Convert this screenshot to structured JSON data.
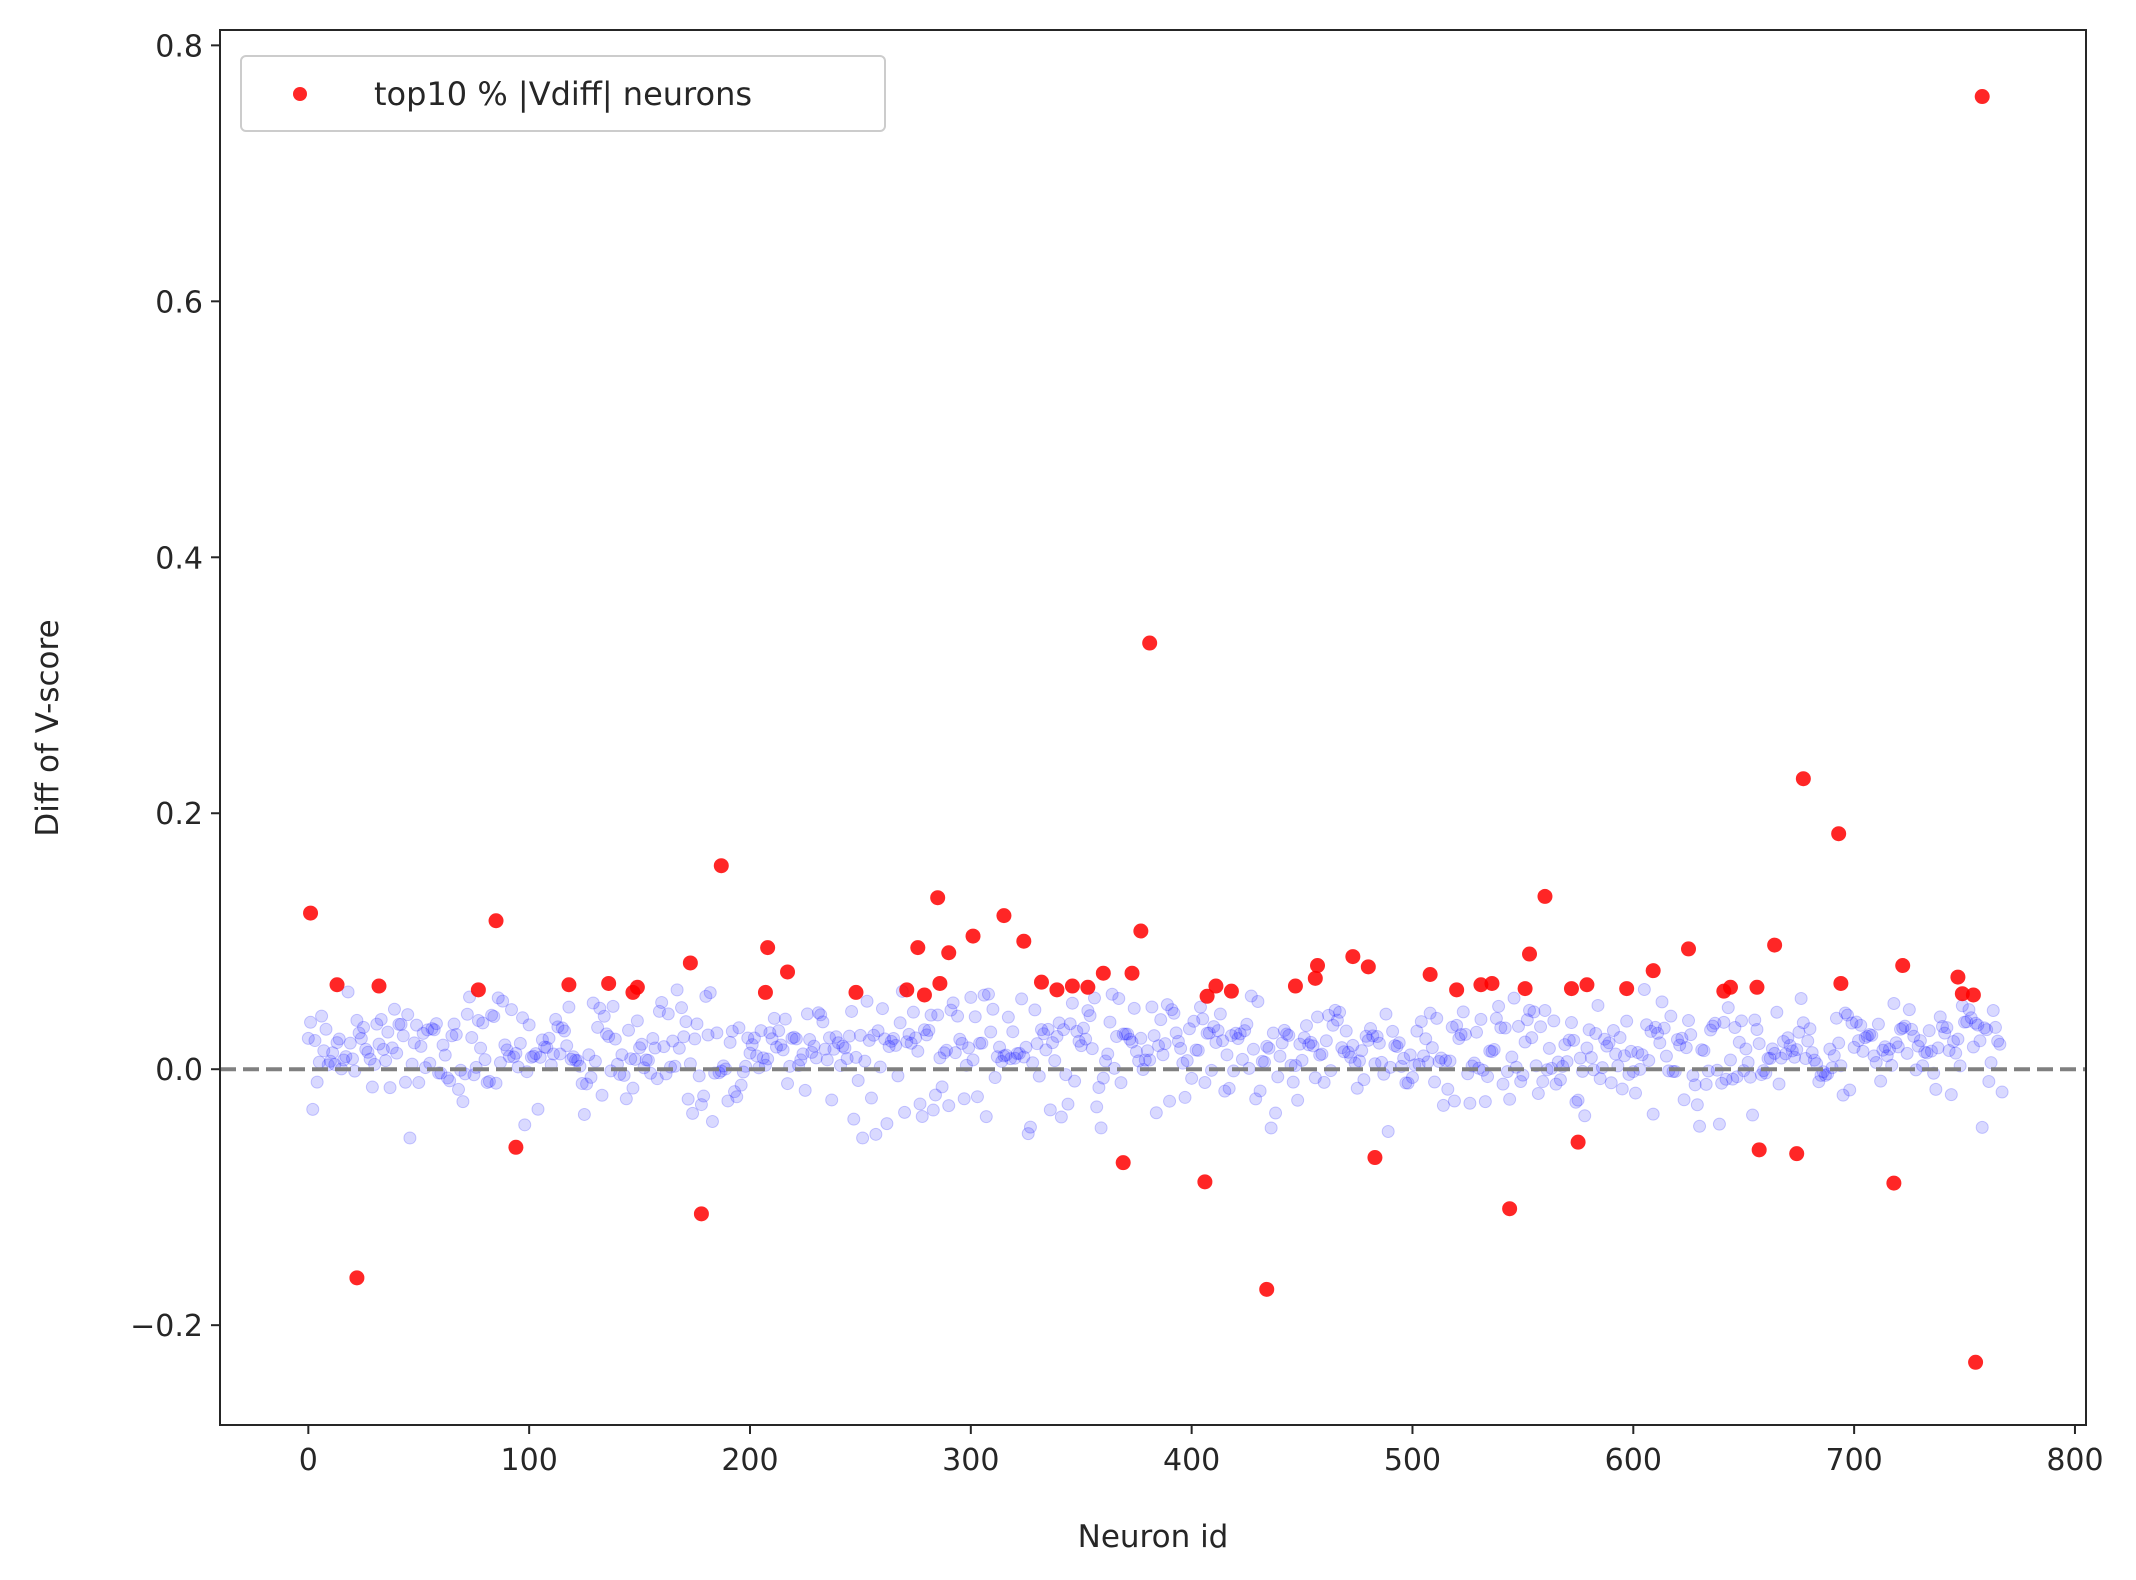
{
  "chart_data": {
    "type": "scatter",
    "xlabel": "Neuron id",
    "ylabel": "Diff of V-score",
    "xlim": [
      -40,
      805
    ],
    "ylim": [
      -0.278,
      0.812
    ],
    "x_ticks": [
      0,
      100,
      200,
      300,
      400,
      500,
      600,
      700,
      800
    ],
    "x_tick_labels": [
      "0",
      "100",
      "200",
      "300",
      "400",
      "500",
      "600",
      "700",
      "800"
    ],
    "y_ticks": [
      -0.2,
      0.0,
      0.2,
      0.4,
      0.6,
      0.8
    ],
    "y_tick_labels": [
      "−0.2",
      "0.0",
      "0.2",
      "0.4",
      "0.6",
      "0.8"
    ],
    "grid": false,
    "legend_position": "top-left",
    "reference_line": {
      "y": 0.0,
      "style": "dashed",
      "color": "#808080"
    },
    "series": [
      {
        "role": "all neurons",
        "color": "#0000ff",
        "opacity": 0.15,
        "n_points": 768,
        "x_range": [
          0,
          767
        ],
        "y_band": [
          -0.06,
          0.06
        ],
        "points_note": "dense band of faint points clustered around 0.02, mostly between -0.05 and 0.06"
      },
      {
        "name": "top10 % |Vdiff| neurons",
        "color": "#ff0000",
        "opacity": 0.85,
        "points": [
          [
            1,
            0.122
          ],
          [
            13,
            0.066
          ],
          [
            22,
            -0.163
          ],
          [
            32,
            0.065
          ],
          [
            77,
            0.062
          ],
          [
            85,
            0.116
          ],
          [
            94,
            -0.061
          ],
          [
            118,
            0.066
          ],
          [
            136,
            0.067
          ],
          [
            147,
            0.06
          ],
          [
            149,
            0.064
          ],
          [
            173,
            0.083
          ],
          [
            178,
            -0.113
          ],
          [
            187,
            0.159
          ],
          [
            207,
            0.06
          ],
          [
            208,
            0.095
          ],
          [
            217,
            0.076
          ],
          [
            248,
            0.06
          ],
          [
            271,
            0.062
          ],
          [
            276,
            0.095
          ],
          [
            279,
            0.058
          ],
          [
            285,
            0.134
          ],
          [
            286,
            0.067
          ],
          [
            290,
            0.091
          ],
          [
            301,
            0.104
          ],
          [
            315,
            0.12
          ],
          [
            324,
            0.1
          ],
          [
            332,
            0.068
          ],
          [
            339,
            0.062
          ],
          [
            346,
            0.065
          ],
          [
            353,
            0.064
          ],
          [
            360,
            0.075
          ],
          [
            369,
            -0.073
          ],
          [
            373,
            0.075
          ],
          [
            377,
            0.108
          ],
          [
            381,
            0.333
          ],
          [
            406,
            -0.088
          ],
          [
            407,
            0.057
          ],
          [
            411,
            0.065
          ],
          [
            418,
            0.061
          ],
          [
            434,
            -0.172
          ],
          [
            447,
            0.065
          ],
          [
            456,
            0.071
          ],
          [
            457,
            0.081
          ],
          [
            473,
            0.088
          ],
          [
            480,
            0.08
          ],
          [
            483,
            -0.069
          ],
          [
            508,
            0.074
          ],
          [
            520,
            0.062
          ],
          [
            531,
            0.066
          ],
          [
            536,
            0.067
          ],
          [
            544,
            -0.109
          ],
          [
            551,
            0.063
          ],
          [
            553,
            0.09
          ],
          [
            560,
            0.135
          ],
          [
            572,
            0.063
          ],
          [
            575,
            -0.057
          ],
          [
            579,
            0.066
          ],
          [
            597,
            0.063
          ],
          [
            609,
            0.077
          ],
          [
            625,
            0.094
          ],
          [
            641,
            0.061
          ],
          [
            644,
            0.064
          ],
          [
            656,
            0.064
          ],
          [
            657,
            -0.063
          ],
          [
            664,
            0.097
          ],
          [
            674,
            -0.066
          ],
          [
            677,
            0.227
          ],
          [
            693,
            0.184
          ],
          [
            694,
            0.067
          ],
          [
            718,
            -0.089
          ],
          [
            722,
            0.081
          ],
          [
            747,
            0.072
          ],
          [
            749,
            0.059
          ],
          [
            754,
            0.058
          ],
          [
            755,
            -0.229
          ],
          [
            758,
            0.76
          ]
        ]
      }
    ]
  }
}
